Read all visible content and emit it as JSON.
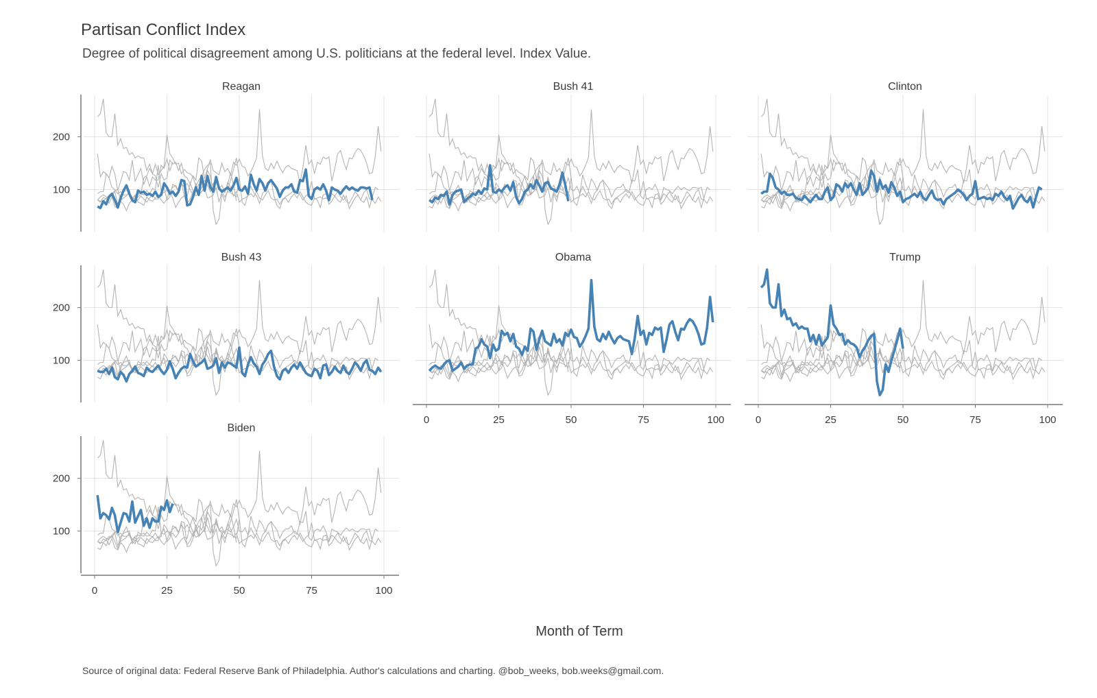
{
  "title": "Partisan Conflict Index",
  "subtitle": "Degree of political disagreement among U.S. politicians at the federal level. Index Value.",
  "caption": "Source of original data: Federal Reserve Bank of Philadelphia. Author's calculations and charting. @bob_weeks, bob.weeks@gmail.com.",
  "chart_data": {
    "type": "line",
    "xlabel": "Month of Term",
    "ylabel": "",
    "xlim": [
      0,
      100
    ],
    "ylim": [
      20,
      280
    ],
    "x_ticks": [
      0,
      25,
      50,
      75,
      100
    ],
    "y_ticks": [
      100,
      200
    ],
    "grid": true,
    "highlight_color": "#4682b4",
    "background_color": "#b3b3b3",
    "panels": [
      {
        "name": "Reagan",
        "values": [
          68,
          65,
          78,
          72,
          86,
          92,
          80,
          66,
          84,
          98,
          108,
          92,
          80,
          76,
          98,
          94,
          96,
          90,
          92,
          88,
          96,
          86,
          90,
          112,
          104,
          92,
          96,
          88,
          96,
          118,
          116,
          70,
          72,
          86,
          104,
          90,
          126,
          98,
          126,
          104,
          96,
          124,
          102,
          96,
          100,
          104,
          98,
          108,
          122,
          100,
          98,
          106,
          92,
          128,
          110,
          98,
          120,
          112,
          98,
          112,
          118,
          110,
          102,
          86,
          98,
          104,
          104,
          110,
          96,
          94,
          118,
          116,
          138,
          88,
          82,
          100,
          104,
          100,
          110,
          98,
          80,
          104,
          100,
          98,
          92,
          100,
          106,
          100,
          104,
          100,
          98,
          104,
          104,
          102,
          104,
          80
        ]
      },
      {
        "name": "Bush 41",
        "values": [
          80,
          76,
          85,
          82,
          90,
          88,
          96,
          72,
          90,
          96,
          98,
          100,
          76,
          82,
          86,
          92,
          90,
          98,
          92,
          102,
          100,
          146,
          96,
          94,
          100,
          96,
          104,
          108,
          98,
          114,
          86,
          74,
          82,
          96,
          100,
          110,
          102,
          118,
          108,
          96,
          112,
          114,
          102,
          100,
          96,
          110,
          132,
          108,
          78
        ]
      },
      {
        "name": "Clinton",
        "values": [
          92,
          96,
          96,
          130,
          122,
          104,
          100,
          92,
          96,
          90,
          90,
          92,
          84,
          82,
          80,
          88,
          82,
          76,
          84,
          90,
          82,
          82,
          96,
          104,
          80,
          86,
          110,
          106,
          96,
          112,
          104,
          112,
          100,
          90,
          112,
          90,
          96,
          104,
          136,
          126,
          96,
          118,
          102,
          108,
          94,
          114,
          104,
          88,
          96,
          76,
          82,
          84,
          88,
          92,
          86,
          96,
          84,
          80,
          90,
          98,
          84,
          80,
          82,
          72,
          82,
          86,
          90,
          94,
          100,
          96,
          90,
          80,
          88,
          92,
          116,
          82,
          84,
          86,
          82,
          84,
          80,
          92,
          88,
          96,
          86,
          80,
          88,
          64,
          74,
          84,
          90,
          80,
          76,
          86,
          66,
          86,
          104,
          100
        ]
      },
      {
        "name": "Bush 43",
        "values": [
          80,
          78,
          78,
          84,
          74,
          86,
          68,
          64,
          78,
          72,
          60,
          74,
          80,
          88,
          76,
          74,
          70,
          86,
          80,
          78,
          84,
          90,
          80,
          74,
          82,
          98,
          84,
          66,
          76,
          84,
          88,
          86,
          112,
          98,
          88,
          92,
          96,
          102,
          84,
          86,
          90,
          104,
          76,
          96,
          86,
          96,
          94,
          90,
          86,
          124,
          76,
          70,
          92,
          106,
          94,
          88,
          74,
          92,
          100,
          112,
          118,
          88,
          70,
          64,
          80,
          84,
          76,
          86,
          92,
          84,
          96,
          86,
          76,
          72,
          70,
          84,
          80,
          66,
          90,
          92,
          72,
          78,
          88,
          80,
          76,
          90,
          78,
          74,
          84,
          96,
          90,
          80,
          94,
          100,
          82,
          80,
          74,
          86,
          78
        ]
      },
      {
        "name": "Obama",
        "values": [
          80,
          86,
          90,
          86,
          84,
          92,
          98,
          100,
          80,
          84,
          88,
          96,
          84,
          90,
          92,
          92,
          122,
          126,
          140,
          130,
          126,
          104,
          130,
          118,
          122,
          156,
          148,
          152,
          136,
          150,
          126,
          122,
          110,
          126,
          118,
          160,
          154,
          120,
          140,
          156,
          136,
          132,
          128,
          150,
          134,
          140,
          128,
          152,
          146,
          158,
          144,
          142,
          126,
          134,
          146,
          160,
          252,
          164,
          140,
          136,
          150,
          140,
          154,
          142,
          132,
          142,
          146,
          140,
          138,
          136,
          112,
          142,
          184,
          148,
          156,
          130,
          152,
          148,
          162,
          158,
          162,
          116,
          140,
          168,
          174,
          154,
          138,
          160,
          158,
          170,
          178,
          174,
          164,
          150,
          130,
          132,
          162,
          220,
          172
        ]
      },
      {
        "name": "Trump",
        "values": [
          238,
          244,
          272,
          208,
          200,
          200,
          244,
          184,
          196,
          178,
          180,
          166,
          170,
          160,
          164,
          160,
          160,
          136,
          148,
          130,
          148,
          128,
          136,
          144,
          204,
          168,
          160,
          148,
          150,
          130,
          138,
          132,
          130,
          124,
          106,
          118,
          126,
          138,
          146,
          150,
          60,
          34,
          44,
          92,
          78,
          100,
          118,
          138,
          160,
          122
        ]
      },
      {
        "name": "Biden",
        "values": [
          168,
          124,
          134,
          130,
          122,
          144,
          130,
          98,
          116,
          134,
          132,
          118,
          156,
          116,
          128,
          140,
          110,
          124,
          106,
          124,
          118,
          118,
          146,
          140,
          158,
          136,
          152
        ]
      }
    ]
  }
}
